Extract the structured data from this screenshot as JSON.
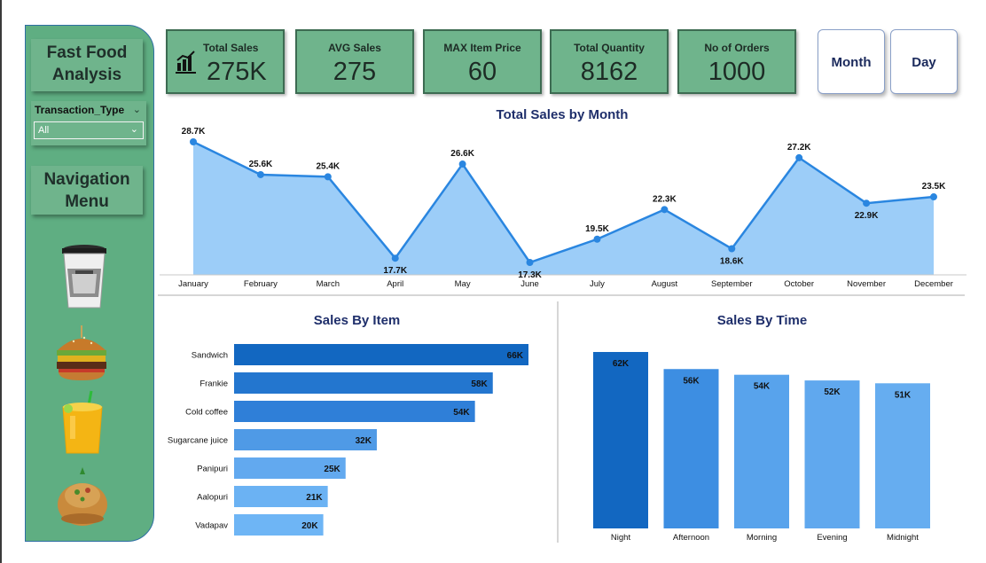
{
  "sidebar": {
    "title": "Fast Food Analysis",
    "slicer": {
      "label": "Transaction_Type",
      "value": "All"
    },
    "nav_title": "Navigation Menu",
    "food_icons": [
      "coffee-cup-icon",
      "burger-icon",
      "juice-icon",
      "panipuri-icon"
    ],
    "colors": {
      "panel": "#5fae82",
      "box": "#6fb48c"
    }
  },
  "kpis": [
    {
      "label": "Total Sales",
      "value": "275K"
    },
    {
      "label": "AVG Sales",
      "value": "275"
    },
    {
      "label": "MAX Item Price",
      "value": "60"
    },
    {
      "label": "Total Quantity",
      "value": "8162"
    },
    {
      "label": "No of Orders",
      "value": "1000"
    }
  ],
  "buttons": {
    "month": "Month",
    "day": "Day"
  },
  "chart_data": [
    {
      "type": "area",
      "title": "Total Sales by Month",
      "categories": [
        "January",
        "February",
        "March",
        "April",
        "May",
        "June",
        "July",
        "August",
        "September",
        "October",
        "November",
        "December"
      ],
      "values": [
        28.7,
        25.6,
        25.4,
        17.7,
        26.6,
        17.3,
        19.5,
        22.3,
        18.6,
        27.2,
        22.9,
        23.5
      ],
      "labels": [
        "28.7K",
        "25.6K",
        "25.4K",
        "17.7K",
        "26.6K",
        "17.3K",
        "19.5K",
        "22.3K",
        "18.6K",
        "27.2K",
        "22.9K",
        "23.5K"
      ],
      "unit": "K",
      "colors": {
        "line": "#2a86e0",
        "fill": "#9ccdf8"
      }
    },
    {
      "type": "bar",
      "orientation": "horizontal",
      "title": "Sales By Item",
      "categories": [
        "Sandwich",
        "Frankie",
        "Cold coffee",
        "Sugarcane juice",
        "Panipuri",
        "Aalopuri",
        "Vadapav"
      ],
      "values": [
        66,
        58,
        54,
        32,
        25,
        21,
        20
      ],
      "labels": [
        "66K",
        "58K",
        "54K",
        "32K",
        "25K",
        "21K",
        "20K"
      ],
      "unit": "K",
      "colors": [
        "#1267c1",
        "#2376cf",
        "#2f7fd8",
        "#4f9ae6",
        "#62a9ef",
        "#6bb2f3",
        "#6eb5f5"
      ]
    },
    {
      "type": "bar",
      "orientation": "vertical",
      "title": "Sales By Time",
      "categories": [
        "Night",
        "Afternoon",
        "Morning",
        "Evening",
        "Midnight"
      ],
      "values": [
        62,
        56,
        54,
        52,
        51
      ],
      "labels": [
        "62K",
        "56K",
        "54K",
        "52K",
        "51K"
      ],
      "unit": "K",
      "colors": [
        "#1267c1",
        "#3d8ee2",
        "#58a3ec",
        "#60a8ee",
        "#66adf0"
      ]
    }
  ]
}
